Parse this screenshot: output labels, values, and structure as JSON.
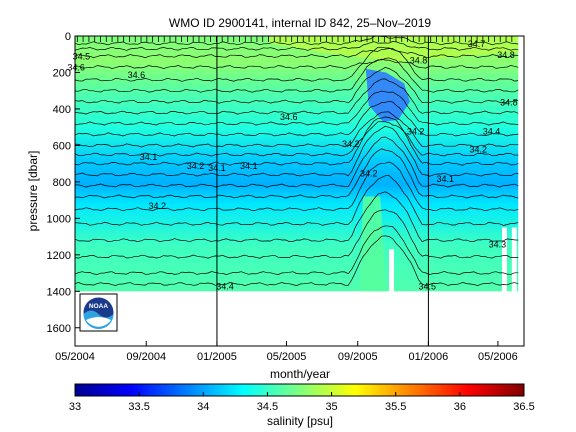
{
  "chart_data": [
    {
      "type": "heatmap",
      "title": "WMO ID 2900141, internal ID 842, 25–Nov–2019",
      "xlabel": "month/year",
      "ylabel": "pressure [dbar]",
      "x_ticks": [
        "05/2004",
        "09/2004",
        "01/2005",
        "05/2005",
        "09/2005",
        "01/2006",
        "05/2006"
      ],
      "x_tick_dates": [
        "2004-05-01",
        "2004-09-01",
        "2005-01-01",
        "2005-05-01",
        "2005-09-01",
        "2006-01-01",
        "2006-05-01"
      ],
      "xlim": [
        "2004-05-01",
        "2006-06-15"
      ],
      "y_ticks": [
        0,
        200,
        400,
        600,
        800,
        1000,
        1200,
        1400,
        1600
      ],
      "ylim": [
        1700,
        0
      ],
      "year_boundaries": [
        "2005-01-01",
        "2006-01-01"
      ],
      "profile_tick_marks": true,
      "profile_pressure_max": 1400,
      "contour_labels": [
        {
          "date": "2004-05-12",
          "pressure": 130,
          "text": "34.5"
        },
        {
          "date": "2004-05-03",
          "pressure": 190,
          "text": "34.6"
        },
        {
          "date": "2004-08-15",
          "pressure": 230,
          "text": "34.6"
        },
        {
          "date": "2005-05-05",
          "pressure": 460,
          "text": "34.6"
        },
        {
          "date": "2004-09-05",
          "pressure": 680,
          "text": "34.1"
        },
        {
          "date": "2004-11-25",
          "pressure": 730,
          "text": "34.2"
        },
        {
          "date": "2005-01-01",
          "pressure": 740,
          "text": "34.1"
        },
        {
          "date": "2005-02-25",
          "pressure": 730,
          "text": "34.1"
        },
        {
          "date": "2004-09-20",
          "pressure": 950,
          "text": "34.2"
        },
        {
          "date": "2005-08-20",
          "pressure": 610,
          "text": "34.2"
        },
        {
          "date": "2005-09-20",
          "pressure": 770,
          "text": "34.2"
        },
        {
          "date": "2005-12-10",
          "pressure": 540,
          "text": "34.2"
        },
        {
          "date": "2006-01-30",
          "pressure": 800,
          "text": "34.1"
        },
        {
          "date": "2005-12-15",
          "pressure": 150,
          "text": "34.8"
        },
        {
          "date": "2006-03-25",
          "pressure": 60,
          "text": "34.7"
        },
        {
          "date": "2006-05-15",
          "pressure": 120,
          "text": "34.8"
        },
        {
          "date": "2006-05-20",
          "pressure": 380,
          "text": "34.8"
        },
        {
          "date": "2006-04-20",
          "pressure": 540,
          "text": "34.4"
        },
        {
          "date": "2006-03-28",
          "pressure": 640,
          "text": "34.2"
        },
        {
          "date": "2006-04-30",
          "pressure": 1160,
          "text": "34.3"
        },
        {
          "date": "2005-01-15",
          "pressure": 1390,
          "text": "34.4"
        },
        {
          "date": "2005-12-30",
          "pressure": 1390,
          "text": "34.5"
        }
      ]
    },
    {
      "type": "heatmap",
      "title": "",
      "xlabel": "salinity [psu]",
      "ylabel": "",
      "colorbar_range": [
        33,
        36.5
      ],
      "x_ticks": [
        "33",
        "33.5",
        "34",
        "34.5",
        "35",
        "35.5",
        "36",
        "36.5"
      ],
      "colormap": "jet"
    }
  ],
  "logo": {
    "text": "NOAA",
    "name": "noaa-logo"
  }
}
